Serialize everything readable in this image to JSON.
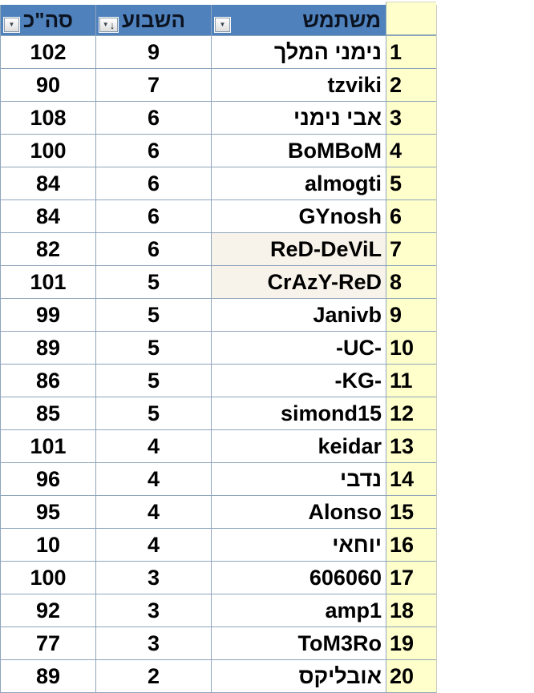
{
  "table": {
    "header": {
      "user": {
        "label": "משתמש"
      },
      "week": {
        "label": "השבוע",
        "sort_indicator": "descending"
      },
      "total": {
        "label": "סה\"כ"
      }
    },
    "rows": [
      {
        "rank": "1",
        "user": "נימני המלך",
        "week": "9",
        "total": "102",
        "highlight": false
      },
      {
        "rank": "2",
        "user": "tzviki",
        "week": "7",
        "total": "90",
        "highlight": false
      },
      {
        "rank": "3",
        "user": "אבי נימני",
        "week": "6",
        "total": "108",
        "highlight": false
      },
      {
        "rank": "4",
        "user": "BoMBoM",
        "week": "6",
        "total": "100",
        "highlight": false
      },
      {
        "rank": "5",
        "user": "almogti",
        "week": "6",
        "total": "84",
        "highlight": false
      },
      {
        "rank": "6",
        "user": "GYnosh",
        "week": "6",
        "total": "84",
        "highlight": false
      },
      {
        "rank": "7",
        "user": "ReD-DeViL",
        "week": "6",
        "total": "82",
        "highlight": true
      },
      {
        "rank": "8",
        "user": "CrAzY-ReD",
        "week": "5",
        "total": "101",
        "highlight": true
      },
      {
        "rank": "9",
        "user": "Janivb",
        "week": "5",
        "total": "99",
        "highlight": false
      },
      {
        "rank": "10",
        "user": "-UC-",
        "week": "5",
        "total": "89",
        "highlight": false
      },
      {
        "rank": "11",
        "user": "-KG-",
        "week": "5",
        "total": "86",
        "highlight": false
      },
      {
        "rank": "12",
        "user": "simond15",
        "week": "5",
        "total": "85",
        "highlight": false
      },
      {
        "rank": "13",
        "user": "keidar",
        "week": "4",
        "total": "101",
        "highlight": false
      },
      {
        "rank": "14",
        "user": "נדבי",
        "week": "4",
        "total": "96",
        "highlight": false
      },
      {
        "rank": "15",
        "user": "Alonso",
        "week": "4",
        "total": "95",
        "highlight": false
      },
      {
        "rank": "16",
        "user": "יוחאי",
        "week": "4",
        "total": "10",
        "highlight": false
      },
      {
        "rank": "17",
        "user": "606060",
        "week": "3",
        "total": "100",
        "highlight": false
      },
      {
        "rank": "18",
        "user": "amp1",
        "week": "3",
        "total": "92",
        "highlight": false
      },
      {
        "rank": "19",
        "user": "ToM3Ro",
        "week": "3",
        "total": "77",
        "highlight": false
      },
      {
        "rank": "20",
        "user": "אובליקס",
        "week": "2",
        "total": "89",
        "highlight": false
      }
    ]
  },
  "icons": {
    "filter_dropdown": "▼",
    "sort_descending": "↓"
  },
  "colors": {
    "header_bg": "#4f81bd",
    "header_text": "#0c1320",
    "body_text": "#000000",
    "rownum_bg": "#ffffcc",
    "highlight_bg": "#f8f3ea",
    "gridline": "#8fa5bb"
  }
}
